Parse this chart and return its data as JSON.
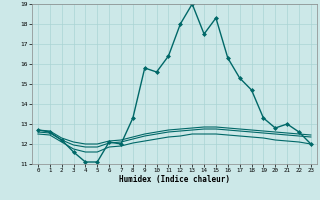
{
  "xlabel": "Humidex (Indice chaleur)",
  "xlim": [
    -0.5,
    23.5
  ],
  "ylim": [
    11,
    19
  ],
  "yticks": [
    11,
    12,
    13,
    14,
    15,
    16,
    17,
    18,
    19
  ],
  "xticks": [
    0,
    1,
    2,
    3,
    4,
    5,
    6,
    7,
    8,
    9,
    10,
    11,
    12,
    13,
    14,
    15,
    16,
    17,
    18,
    19,
    20,
    21,
    22,
    23
  ],
  "bg_color": "#cce8e8",
  "line_color": "#006868",
  "grid_color": "#aad4d4",
  "lines": [
    {
      "x": [
        0,
        1,
        2,
        3,
        4,
        5,
        6,
        7,
        8,
        9,
        10,
        11,
        12,
        13,
        14,
        15,
        16,
        17,
        18,
        19,
        20,
        21,
        22,
        23
      ],
      "y": [
        12.7,
        12.6,
        12.2,
        11.6,
        11.1,
        11.1,
        12.1,
        12.0,
        13.3,
        15.8,
        15.6,
        16.4,
        18.0,
        19.0,
        17.5,
        18.3,
        16.3,
        15.3,
        14.7,
        13.3,
        12.8,
        13.0,
        12.6,
        12.0
      ],
      "marker": "D",
      "markersize": 2.0,
      "linewidth": 1.0
    },
    {
      "x": [
        0,
        1,
        2,
        3,
        4,
        5,
        6,
        7,
        8,
        9,
        10,
        11,
        12,
        13,
        14,
        15,
        16,
        17,
        18,
        19,
        20,
        21,
        22,
        23
      ],
      "y": [
        12.7,
        12.65,
        12.3,
        12.1,
        12.0,
        12.0,
        12.15,
        12.2,
        12.35,
        12.5,
        12.6,
        12.7,
        12.75,
        12.8,
        12.85,
        12.85,
        12.8,
        12.75,
        12.7,
        12.65,
        12.6,
        12.55,
        12.5,
        12.45
      ],
      "marker": null,
      "markersize": 0,
      "linewidth": 0.8
    },
    {
      "x": [
        0,
        1,
        2,
        3,
        4,
        5,
        6,
        7,
        8,
        9,
        10,
        11,
        12,
        13,
        14,
        15,
        16,
        17,
        18,
        19,
        20,
        21,
        22,
        23
      ],
      "y": [
        12.6,
        12.55,
        12.2,
        11.95,
        11.85,
        11.85,
        12.05,
        12.1,
        12.25,
        12.4,
        12.5,
        12.6,
        12.65,
        12.7,
        12.75,
        12.75,
        12.7,
        12.65,
        12.6,
        12.55,
        12.5,
        12.45,
        12.4,
        12.35
      ],
      "marker": null,
      "markersize": 0,
      "linewidth": 0.8
    },
    {
      "x": [
        0,
        1,
        2,
        3,
        4,
        5,
        6,
        7,
        8,
        9,
        10,
        11,
        12,
        13,
        14,
        15,
        16,
        17,
        18,
        19,
        20,
        21,
        22,
        23
      ],
      "y": [
        12.5,
        12.45,
        12.1,
        11.75,
        11.6,
        11.6,
        11.85,
        11.9,
        12.05,
        12.15,
        12.25,
        12.35,
        12.4,
        12.5,
        12.5,
        12.5,
        12.45,
        12.4,
        12.35,
        12.3,
        12.2,
        12.15,
        12.1,
        12.0
      ],
      "marker": null,
      "markersize": 0,
      "linewidth": 0.8
    }
  ]
}
